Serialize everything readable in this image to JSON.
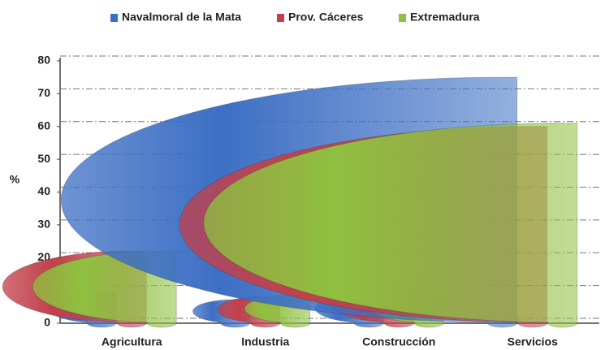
{
  "chart_data": {
    "type": "bar",
    "y_label": "%",
    "categories": [
      "Agricultura",
      "Industria",
      "Construcción",
      "Servicios"
    ],
    "series": [
      {
        "name": "Navalmoral de la Mata",
        "color": "#3d6fc4",
        "values": [
          9,
          7,
          9,
          75
        ]
      },
      {
        "name": "Prov. Cáceres",
        "color": "#c2404b",
        "values": [
          22,
          8,
          11,
          60
        ]
      },
      {
        "name": "Extremadura",
        "color": "#8fc040",
        "values": [
          22,
          8.5,
          10,
          61
        ]
      }
    ],
    "ylim": [
      0,
      80
    ],
    "yticks": [
      0,
      10,
      20,
      30,
      40,
      50,
      60,
      70,
      80
    ],
    "grid": true,
    "legend": "top"
  }
}
